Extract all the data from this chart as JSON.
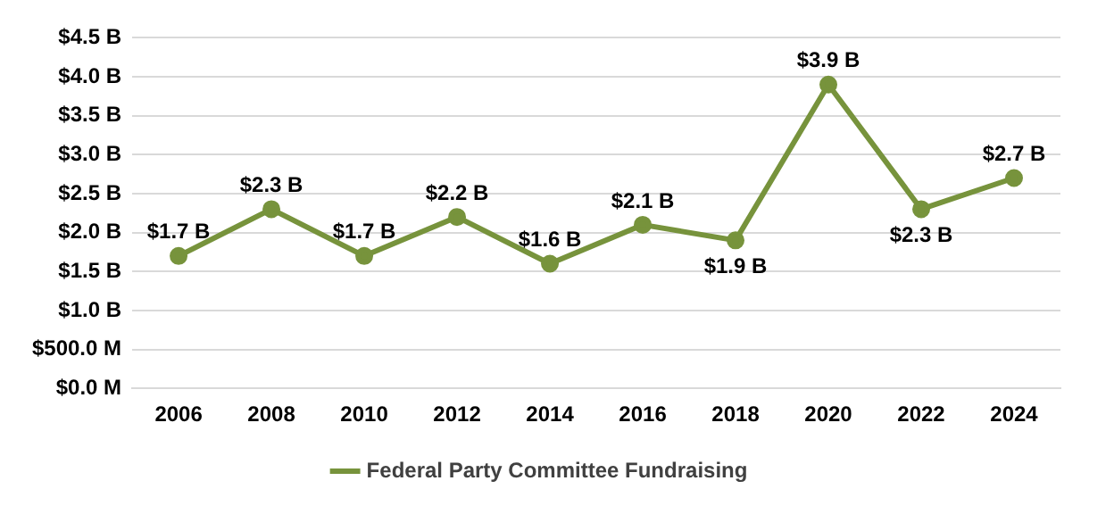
{
  "chart_data": {
    "type": "line",
    "categories": [
      "2006",
      "2008",
      "2010",
      "2012",
      "2014",
      "2016",
      "2018",
      "2020",
      "2022",
      "2024"
    ],
    "series": [
      {
        "name": "Federal Party Committee Fundraising",
        "color": "#77933c",
        "values": [
          1700000000,
          2300000000,
          1700000000,
          2200000000,
          1600000000,
          2100000000,
          1900000000,
          3900000000,
          2300000000,
          2700000000
        ],
        "value_labels": [
          "$1.7 B",
          "$2.3 B",
          "$1.7 B",
          "$2.2 B",
          "$1.6 B",
          "$2.1 B",
          "$1.9 B",
          "$3.9 B",
          "$2.3 B",
          "$2.7 B"
        ]
      }
    ],
    "ylim": [
      0,
      4500000000
    ],
    "yticks": [
      {
        "value": 0,
        "label": "$0.0 M"
      },
      {
        "value": 500000000,
        "label": "$500.0 M"
      },
      {
        "value": 1000000000,
        "label": "$1.0 B"
      },
      {
        "value": 1500000000,
        "label": "$1.5 B"
      },
      {
        "value": 2000000000,
        "label": "$2.0 B"
      },
      {
        "value": 2500000000,
        "label": "$2.5 B"
      },
      {
        "value": 3000000000,
        "label": "$3.0 B"
      },
      {
        "value": 3500000000,
        "label": "$3.5 B"
      },
      {
        "value": 4000000000,
        "label": "$4.0 B"
      },
      {
        "value": 4500000000,
        "label": "$4.5 B"
      }
    ],
    "grid": "y",
    "legend": "bottom",
    "marker": "circle",
    "line_style": "solid"
  }
}
